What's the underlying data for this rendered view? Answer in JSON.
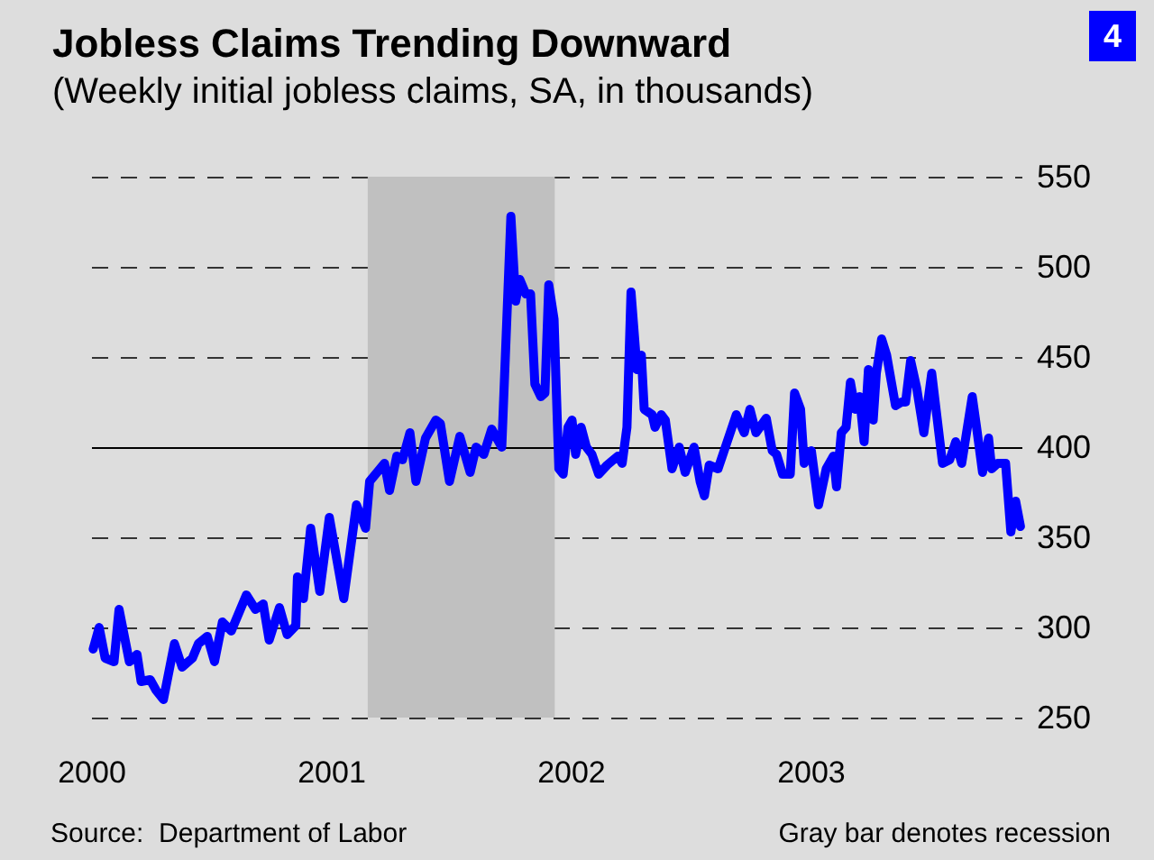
{
  "chart_data": {
    "type": "line",
    "title": "Jobless Claims Trending Downward",
    "subtitle": "(Weekly initial jobless claims, SA, in thousands)",
    "annotations": [
      "4",
      "Source:  Department of Labor",
      "Gray bar denotes recession"
    ],
    "xlim": [
      2000,
      2003.88
    ],
    "xticks": [
      2000,
      2001,
      2002,
      2003
    ],
    "ylim": [
      250,
      550
    ],
    "yticks": [
      250,
      300,
      350,
      400,
      450,
      500,
      550
    ],
    "grid": "y",
    "marker": "none",
    "line_style": "solid",
    "bands": [
      {
        "axis": "x",
        "from": 2001.15,
        "to": 2001.93,
        "label": null,
        "color": "#c0c0c0"
      }
    ],
    "ref_lines": [
      {
        "axis": "y",
        "value": 400,
        "label": null,
        "color": "#000000",
        "line_style": "solid"
      }
    ],
    "series": [
      {
        "color": "#0000ff",
        "x": [
          2000.005,
          2000.03,
          2000.055,
          2000.092,
          2000.113,
          2000.156,
          2000.188,
          2000.205,
          2000.243,
          2000.268,
          2000.298,
          2000.344,
          2000.376,
          2000.419,
          2000.444,
          2000.481,
          2000.511,
          2000.544,
          2000.581,
          2000.644,
          2000.682,
          2000.714,
          2000.739,
          2000.782,
          2000.814,
          2000.85,
          2000.857,
          2000.882,
          2000.912,
          2000.95,
          2000.99,
          2001.05,
          2001.103,
          2001.141,
          2001.158,
          2001.22,
          2001.241,
          2001.271,
          2001.295,
          2001.326,
          2001.351,
          2001.391,
          2001.434,
          2001.453,
          2001.491,
          2001.534,
          2001.577,
          2001.602,
          2001.634,
          2001.667,
          2001.709,
          2001.747,
          2001.767,
          2001.784,
          2001.809,
          2001.829,
          2001.847,
          2001.872,
          2001.889,
          2001.905,
          2001.927,
          2001.947,
          2001.965,
          2001.985,
          2002.002,
          2002.017,
          2002.04,
          2002.062,
          2002.085,
          2002.113,
          2002.148,
          2002.193,
          2002.211,
          2002.231,
          2002.248,
          2002.273,
          2002.291,
          2002.303,
          2002.336,
          2002.348,
          2002.374,
          2002.391,
          2002.419,
          2002.449,
          2002.474,
          2002.511,
          2002.536,
          2002.554,
          2002.574,
          2002.611,
          2002.649,
          2002.687,
          2002.72,
          2002.744,
          2002.769,
          2002.812,
          2002.837,
          2002.855,
          2002.88,
          2002.912,
          2002.93,
          2002.955,
          2002.97,
          2003.0,
          2003.03,
          2003.062,
          2003.092,
          2003.105,
          2003.125,
          2003.145,
          2003.163,
          2003.183,
          2003.201,
          2003.22,
          2003.238,
          2003.258,
          2003.271,
          2003.293,
          2003.314,
          2003.351,
          2003.376,
          2003.393,
          2003.414,
          2003.439,
          2003.469,
          2003.502,
          2003.547,
          2003.577,
          2003.602,
          2003.627,
          2003.671,
          2003.689,
          2003.714,
          2003.739,
          2003.752,
          2003.777,
          2003.81,
          2003.832,
          2003.852,
          2003.872
        ],
        "values": [
          288,
          300,
          283,
          281,
          310,
          281,
          285,
          270,
          271,
          265,
          260,
          291,
          278,
          283,
          291,
          295,
          281,
          303,
          298,
          318,
          310,
          313,
          293,
          311,
          296,
          301,
          328,
          316,
          355,
          320,
          361,
          316,
          368,
          355,
          381,
          391,
          376,
          395,
          393,
          408,
          381,
          405,
          415,
          413,
          381,
          406,
          386,
          400,
          396,
          410,
          400,
          528,
          481,
          493,
          485,
          485,
          435,
          428,
          430,
          490,
          471,
          388,
          385,
          411,
          415,
          396,
          411,
          400,
          396,
          385,
          390,
          395,
          391,
          411,
          486,
          443,
          451,
          421,
          418,
          411,
          418,
          415,
          388,
          400,
          386,
          400,
          381,
          373,
          390,
          388,
          403,
          418,
          408,
          421,
          408,
          416,
          398,
          396,
          385,
          385,
          430,
          421,
          391,
          398,
          368,
          388,
          395,
          378,
          408,
          411,
          436,
          421,
          428,
          403,
          443,
          415,
          441,
          460,
          451,
          423,
          425,
          425,
          448,
          433,
          408,
          441,
          391,
          393,
          403,
          391,
          428,
          411,
          386,
          405,
          388,
          391,
          391,
          353,
          370,
          356
        ]
      }
    ]
  }
}
